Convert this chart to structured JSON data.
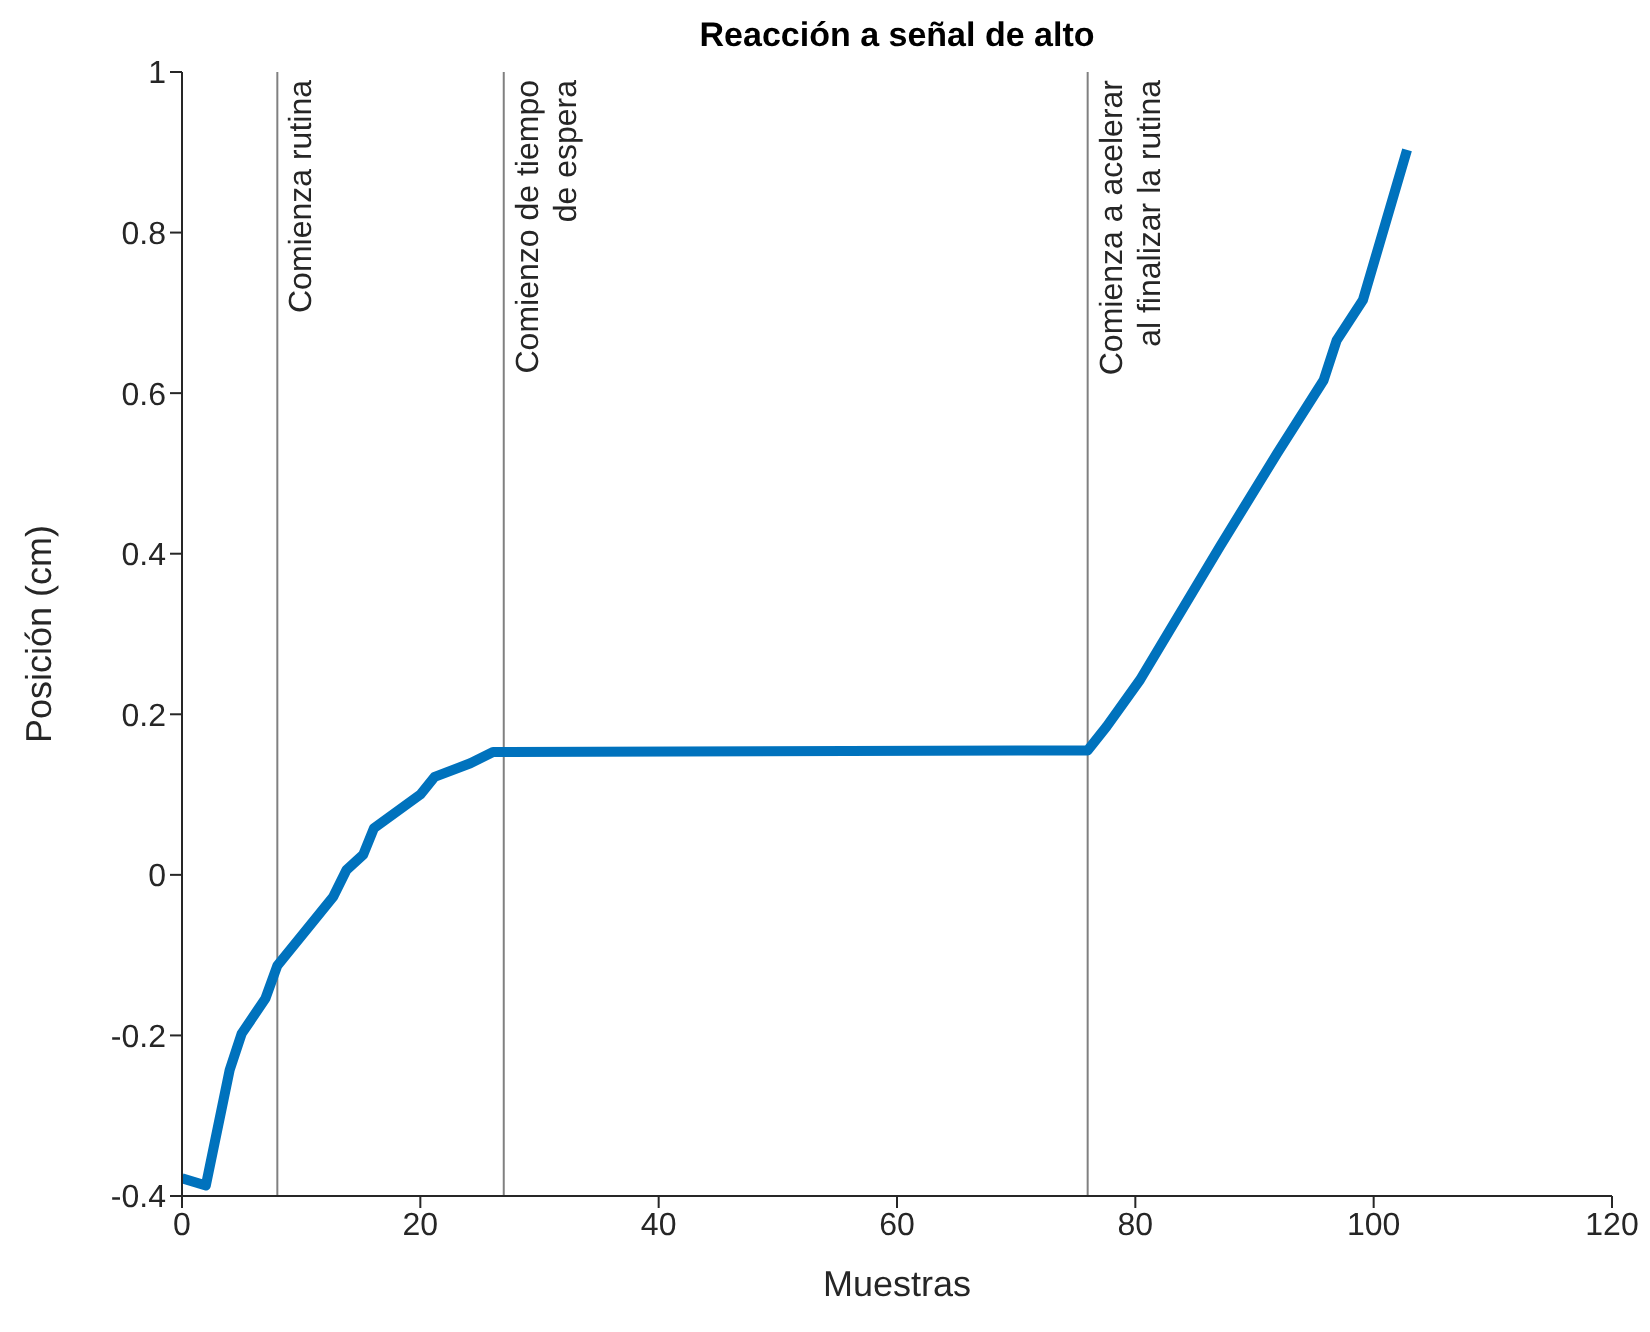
{
  "chart_data": {
    "type": "line",
    "title": "Reacción a señal de alto",
    "xlabel": "Muestras",
    "ylabel": "Posición (cm)",
    "x": [
      0,
      2,
      4,
      5,
      7,
      8,
      12.7,
      13.8,
      15.2,
      16.1,
      20,
      21.2,
      24.2,
      26.1,
      76,
      77.6,
      80.4,
      87.1,
      91.9,
      95.8,
      96.9,
      99.1,
      102.8
    ],
    "series": [
      {
        "color": "#0072bd",
        "values": [
          -0.378,
          -0.387,
          -0.243,
          -0.198,
          -0.154,
          -0.113,
          -0.027,
          0.006,
          0.025,
          0.058,
          0.1,
          0.122,
          0.139,
          0.153,
          0.155,
          0.185,
          0.243,
          0.409,
          0.525,
          0.616,
          0.666,
          0.716,
          0.903
        ]
      }
    ],
    "xlim": [
      0,
      120
    ],
    "xticks": [
      0,
      20,
      40,
      60,
      80,
      100,
      120
    ],
    "ylim": [
      -0.4,
      1
    ],
    "yticks": [
      -0.4,
      -0.2,
      0,
      0.2,
      0.4,
      0.6,
      0.8,
      1
    ],
    "grid": false,
    "legend": false,
    "marker": "none",
    "line_style": "solid",
    "ref_lines": [
      {
        "axis": "x",
        "value": 8,
        "label": "Comienza rutina",
        "color": "#808080"
      },
      {
        "axis": "x",
        "value": 27,
        "label": "Comienzo de tiempo\nde espera",
        "color": "#808080"
      },
      {
        "axis": "x",
        "value": 76,
        "label": "Comienza a acelerar\nal finalizar la rutina",
        "color": "#808080"
      }
    ]
  }
}
